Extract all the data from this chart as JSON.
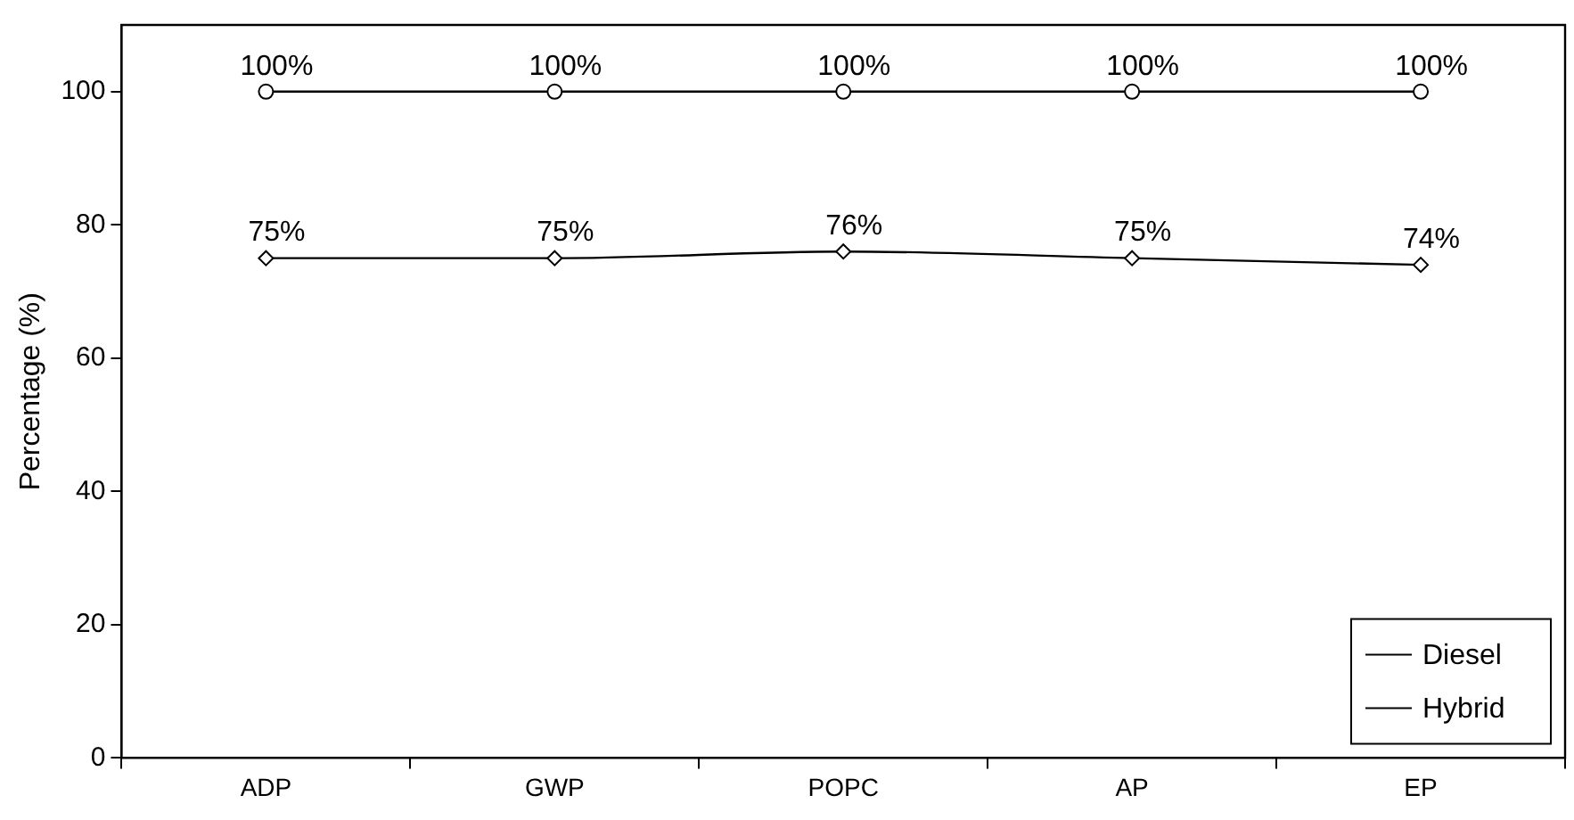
{
  "chart_data": {
    "type": "line",
    "ylabel": "Percentage (%)",
    "categories": [
      "ADP",
      "GWP",
      "POPC",
      "AP",
      "EP"
    ],
    "series": [
      {
        "name": "Diesel",
        "color": "#000000",
        "marker": "circle",
        "values": [
          100,
          100,
          100,
          100,
          100
        ],
        "value_labels": [
          "100%",
          "100%",
          "100%",
          "100%",
          "100%"
        ]
      },
      {
        "name": "Hybrid",
        "color": "#000000",
        "marker": "diamond",
        "values": [
          75,
          75,
          76,
          75,
          74
        ],
        "value_labels": [
          "75%",
          "75%",
          "76%",
          "75%",
          "74%"
        ]
      }
    ],
    "ylim": [
      0,
      110
    ],
    "yticks": [
      0,
      20,
      40,
      60,
      80,
      100
    ],
    "grid": false,
    "legend": "bottom right",
    "line_style": "solid"
  }
}
